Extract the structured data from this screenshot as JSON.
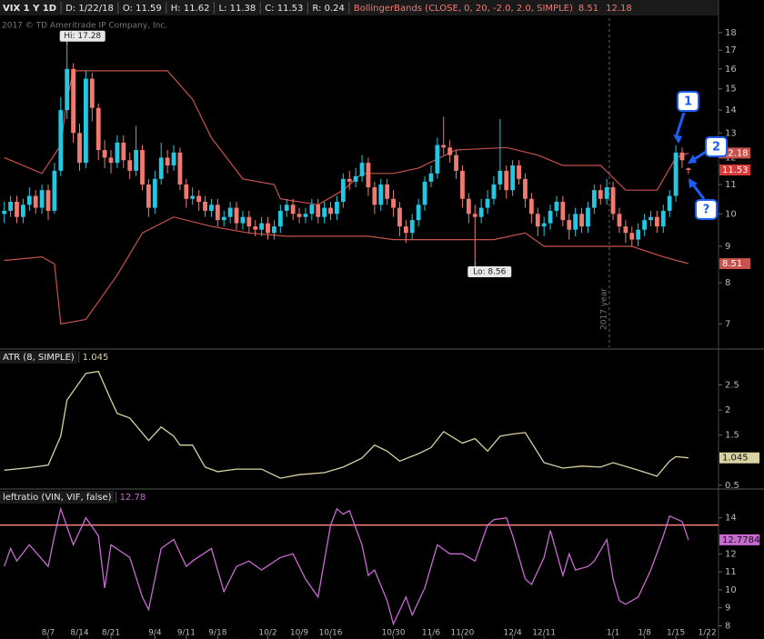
{
  "chart_data": [
    {
      "type": "candlestick",
      "header": [
        "VIX 1 Y 1D",
        "D: 1/22/18",
        "O: 11.59",
        "H: 11.62",
        "L: 11.38",
        "C: 11.53",
        "R: 0.24"
      ],
      "study_label": "BollingerBands (CLOSE, 0, 20, -2.0, 2.0, SIMPLE)",
      "copyright": "2017 © TD Ameritrade IP Company, Inc.",
      "hi_label": "Hi: 17.28",
      "lo_label": "Lo: 8.56",
      "year_label": "2017 year",
      "year_x": 96.4,
      "callouts": [
        "1",
        "2",
        "?"
      ],
      "log": true,
      "ylim": [
        6.49,
        18.86
      ],
      "yticks": [
        7,
        8,
        9,
        10,
        11,
        12,
        13,
        14,
        15,
        16,
        17,
        18
      ],
      "xlim": [
        -0.68,
        113.8
      ],
      "xticks": [
        {
          "value": 7,
          "label": "8/7"
        },
        {
          "value": 12,
          "label": "8/14"
        },
        {
          "value": 17,
          "label": "8/21"
        },
        {
          "value": 24,
          "label": "9/4"
        },
        {
          "value": 29,
          "label": "9/11"
        },
        {
          "value": 34,
          "label": "9/18"
        },
        {
          "value": 42,
          "label": "10/2"
        },
        {
          "value": 47,
          "label": "10/9"
        },
        {
          "value": 52,
          "label": "10/16"
        },
        {
          "value": 62,
          "label": "10/30"
        },
        {
          "value": 68,
          "label": "11/6"
        },
        {
          "value": 73,
          "label": "11/20"
        },
        {
          "value": 81,
          "label": "12/4"
        },
        {
          "value": 86,
          "label": "12/11"
        },
        {
          "value": 97,
          "label": "1/1"
        },
        {
          "value": 102,
          "label": "1/8"
        },
        {
          "value": 107,
          "label": "1/15"
        },
        {
          "value": 112,
          "label": "1/22"
        }
      ],
      "up_color": "#22c8e2",
      "down_color": "#f07a72",
      "open": [
        10.0,
        10.1,
        10.4,
        9.9,
        10.3,
        10.6,
        10.2,
        10.8,
        10.1,
        11.5,
        14.0,
        16.0,
        13.0,
        11.8,
        15.5,
        14.1,
        12.3,
        12.0,
        11.8,
        12.6,
        11.9,
        11.5,
        12.3,
        11.0,
        10.2,
        11.2,
        12.0,
        11.7,
        12.2,
        11.0,
        10.5,
        10.6,
        10.4,
        10.1,
        10.3,
        9.8,
        9.9,
        10.2,
        9.7,
        9.9,
        9.6,
        9.5,
        9.7,
        9.4,
        9.6,
        10.1,
        10.3,
        10.0,
        9.9,
        10.0,
        10.3,
        9.9,
        10.2,
        10.0,
        10.4,
        11.2,
        11.1,
        11.3,
        11.8,
        10.9,
        10.3,
        11.0,
        10.5,
        10.2,
        9.6,
        9.4,
        9.8,
        10.3,
        11.1,
        11.4,
        12.5,
        12.4,
        12.1,
        11.5,
        10.5,
        10.0,
        9.9,
        10.2,
        10.5,
        11.0,
        11.5,
        10.8,
        11.7,
        11.2,
        10.5,
        10.0,
        9.6,
        9.7,
        10.1,
        10.4,
        9.8,
        9.5,
        10.0,
        9.6,
        10.2,
        10.8,
        10.5,
        10.9,
        10.0,
        9.6,
        9.4,
        9.2,
        9.5,
        9.8,
        9.9,
        9.6,
        10.1,
        10.6,
        12.2,
        11.59
      ],
      "high": [
        10.4,
        10.6,
        10.6,
        10.5,
        10.9,
        10.8,
        11.0,
        11.0,
        11.8,
        14.6,
        17.28,
        16.3,
        13.4,
        15.9,
        15.8,
        14.3,
        12.7,
        12.3,
        12.9,
        12.9,
        12.2,
        13.3,
        12.5,
        11.2,
        11.5,
        12.6,
        12.3,
        12.5,
        12.4,
        11.2,
        10.9,
        10.8,
        10.6,
        10.5,
        10.5,
        10.1,
        10.4,
        10.4,
        10.1,
        10.1,
        9.8,
        9.9,
        9.9,
        9.8,
        10.3,
        10.5,
        10.5,
        10.2,
        10.2,
        10.5,
        10.5,
        10.4,
        10.4,
        10.6,
        11.4,
        11.5,
        11.6,
        12.1,
        12.0,
        11.1,
        11.2,
        11.2,
        10.8,
        10.4,
        9.8,
        10.0,
        10.5,
        11.3,
        11.7,
        12.8,
        13.7,
        12.7,
        12.3,
        11.7,
        10.7,
        10.3,
        10.5,
        10.8,
        11.3,
        13.6,
        11.7,
        11.9,
        11.9,
        11.4,
        10.7,
        10.2,
        9.9,
        10.3,
        10.6,
        10.6,
        10.0,
        10.2,
        10.2,
        10.4,
        11.0,
        11.0,
        11.2,
        11.1,
        10.2,
        9.8,
        9.6,
        9.7,
        10.0,
        10.1,
        10.1,
        10.3,
        10.8,
        12.5,
        12.4,
        11.62
      ],
      "low": [
        9.7,
        9.9,
        9.7,
        9.7,
        10.1,
        10.0,
        10.0,
        9.8,
        10.0,
        11.3,
        13.6,
        12.6,
        11.5,
        11.6,
        13.5,
        11.9,
        11.6,
        11.4,
        11.6,
        11.6,
        11.2,
        11.3,
        10.8,
        9.9,
        10.0,
        11.0,
        11.4,
        11.5,
        10.8,
        10.2,
        10.3,
        10.1,
        9.9,
        9.9,
        9.6,
        9.6,
        9.7,
        9.5,
        9.5,
        9.4,
        9.3,
        9.3,
        9.2,
        9.2,
        9.4,
        9.9,
        9.8,
        9.7,
        9.7,
        9.8,
        9.7,
        9.7,
        9.8,
        9.8,
        10.2,
        10.8,
        10.9,
        11.1,
        10.6,
        10.0,
        10.1,
        10.3,
        9.9,
        9.3,
        9.1,
        9.2,
        9.6,
        10.1,
        10.9,
        11.2,
        12.1,
        11.8,
        11.2,
        10.2,
        9.7,
        8.56,
        9.7,
        10.0,
        10.3,
        10.8,
        10.5,
        10.6,
        11.0,
        10.2,
        9.7,
        9.3,
        9.3,
        9.5,
        9.9,
        9.6,
        9.2,
        9.3,
        9.4,
        9.4,
        10.0,
        10.3,
        10.3,
        9.8,
        9.4,
        9.1,
        9.0,
        9.0,
        9.3,
        9.6,
        9.4,
        9.4,
        9.9,
        10.4,
        11.6,
        11.38
      ],
      "close": [
        10.1,
        10.4,
        9.9,
        10.3,
        10.6,
        10.2,
        10.8,
        10.1,
        11.5,
        14.0,
        16.0,
        13.0,
        11.8,
        15.5,
        14.1,
        12.3,
        12.0,
        11.8,
        12.6,
        11.9,
        11.5,
        12.3,
        11.0,
        10.2,
        11.2,
        12.0,
        11.7,
        12.2,
        11.0,
        10.5,
        10.6,
        10.4,
        10.1,
        10.3,
        9.8,
        9.9,
        10.2,
        9.7,
        9.9,
        9.6,
        9.5,
        9.7,
        9.4,
        9.6,
        10.1,
        10.3,
        10.0,
        9.9,
        10.0,
        10.3,
        9.9,
        10.2,
        10.0,
        10.4,
        11.2,
        11.1,
        11.3,
        11.8,
        10.9,
        10.3,
        11.0,
        10.5,
        10.2,
        9.6,
        9.4,
        9.8,
        10.3,
        11.1,
        11.4,
        12.5,
        12.4,
        12.1,
        11.5,
        10.5,
        10.0,
        9.9,
        10.2,
        10.5,
        11.0,
        11.5,
        10.8,
        11.7,
        11.2,
        10.5,
        10.0,
        9.6,
        9.7,
        10.1,
        10.4,
        9.8,
        9.5,
        10.0,
        9.6,
        10.2,
        10.8,
        10.5,
        10.9,
        10.0,
        9.6,
        9.4,
        9.2,
        9.5,
        9.8,
        9.9,
        9.6,
        10.1,
        10.6,
        12.2,
        11.9,
        11.53
      ],
      "series": [
        {
          "color": "#c8524c",
          "x": [
            0,
            6,
            9,
            10,
            11,
            15,
            26,
            30,
            33,
            38,
            43,
            44,
            50,
            54,
            57,
            62,
            66,
            72,
            80,
            85,
            89,
            95,
            99,
            104,
            107,
            109
          ],
          "values": [
            12.0,
            11.4,
            12.5,
            14.5,
            15.9,
            15.9,
            15.9,
            14.5,
            12.8,
            11.2,
            11.0,
            10.5,
            10.3,
            10.8,
            11.4,
            11.4,
            11.6,
            12.3,
            12.4,
            12.1,
            11.7,
            11.7,
            10.8,
            10.8,
            12.0,
            12.18
          ]
        },
        {
          "color": "#c8524c",
          "x": [
            0,
            6,
            8,
            9,
            13,
            18,
            22,
            27,
            33,
            39,
            45,
            52,
            58,
            62,
            66,
            73,
            78,
            83,
            86,
            92,
            100,
            105,
            109
          ],
          "values": [
            8.6,
            8.7,
            8.5,
            7.0,
            7.1,
            8.2,
            9.4,
            9.9,
            9.6,
            9.4,
            9.3,
            9.3,
            9.3,
            9.2,
            9.2,
            9.2,
            9.2,
            9.4,
            9.0,
            9.0,
            9.0,
            8.7,
            8.51
          ]
        }
      ]
    },
    {
      "type": "line",
      "title": "ATR (8, SIMPLE)",
      "color": "#d9d2a2",
      "ylim": [
        0.46,
        3.18
      ],
      "yticks": [
        0.5,
        1.5,
        2,
        2.5
      ],
      "x": [
        0,
        4,
        7,
        9,
        10,
        13,
        15,
        17,
        18,
        20,
        23,
        25,
        27,
        28,
        30,
        32,
        34,
        37,
        41,
        44,
        47,
        51,
        54,
        57,
        59,
        61,
        63,
        66,
        68,
        70,
        73,
        75,
        77,
        79,
        81,
        83,
        86,
        89,
        92,
        95,
        97,
        101,
        104,
        106,
        107,
        109
      ],
      "values": [
        0.8,
        0.85,
        0.9,
        1.48,
        2.2,
        2.73,
        2.77,
        2.2,
        1.93,
        1.84,
        1.39,
        1.66,
        1.48,
        1.3,
        1.3,
        0.86,
        0.77,
        0.82,
        0.82,
        0.64,
        0.71,
        0.75,
        0.86,
        1.04,
        1.3,
        1.18,
        0.98,
        1.13,
        1.25,
        1.57,
        1.34,
        1.43,
        1.18,
        1.48,
        1.52,
        1.55,
        0.95,
        0.84,
        0.88,
        0.86,
        0.95,
        0.8,
        0.68,
        0.98,
        1.07,
        1.045
      ]
    },
    {
      "type": "line",
      "title": "leftratio (VIN, VIF, false)",
      "header_value": "12.78",
      "color": "#c86ad2",
      "hline": 13.6,
      "hline_color": "#ff8080",
      "ylim": [
        7.37,
        15.5
      ],
      "yticks": [
        8,
        9,
        10,
        11,
        12,
        14
      ],
      "x": [
        0,
        1,
        2,
        4,
        7,
        8,
        9,
        11,
        13,
        15,
        16,
        17,
        20,
        22,
        23,
        25,
        27,
        29,
        30,
        33,
        35,
        37,
        39,
        41,
        44,
        46,
        48,
        50,
        52,
        53,
        54,
        55,
        57,
        58,
        59,
        61,
        62,
        64,
        65,
        67,
        69,
        71,
        73,
        75,
        77,
        78,
        80,
        81,
        83,
        84,
        86,
        87,
        89,
        90,
        91,
        93,
        94,
        96,
        97,
        98,
        99,
        101,
        103,
        105,
        106,
        108,
        109
      ],
      "values": [
        11.3,
        12.3,
        11.6,
        12.5,
        11.3,
        13.0,
        14.5,
        12.5,
        14.0,
        13.0,
        10.1,
        12.5,
        11.8,
        9.6,
        8.9,
        12.3,
        12.8,
        11.3,
        11.6,
        12.3,
        9.9,
        11.3,
        11.6,
        11.1,
        11.8,
        12.0,
        10.6,
        9.6,
        13.6,
        14.5,
        14.2,
        14.4,
        12.5,
        10.8,
        11.1,
        9.4,
        8.1,
        9.6,
        8.6,
        10.1,
        12.5,
        12.0,
        12.0,
        11.6,
        13.6,
        13.9,
        14.0,
        13.0,
        10.6,
        10.3,
        11.8,
        13.3,
        10.8,
        12.0,
        11.1,
        11.3,
        11.6,
        12.8,
        10.6,
        9.4,
        9.2,
        9.6,
        11.1,
        13.0,
        14.1,
        13.8,
        12.7784
      ]
    }
  ]
}
